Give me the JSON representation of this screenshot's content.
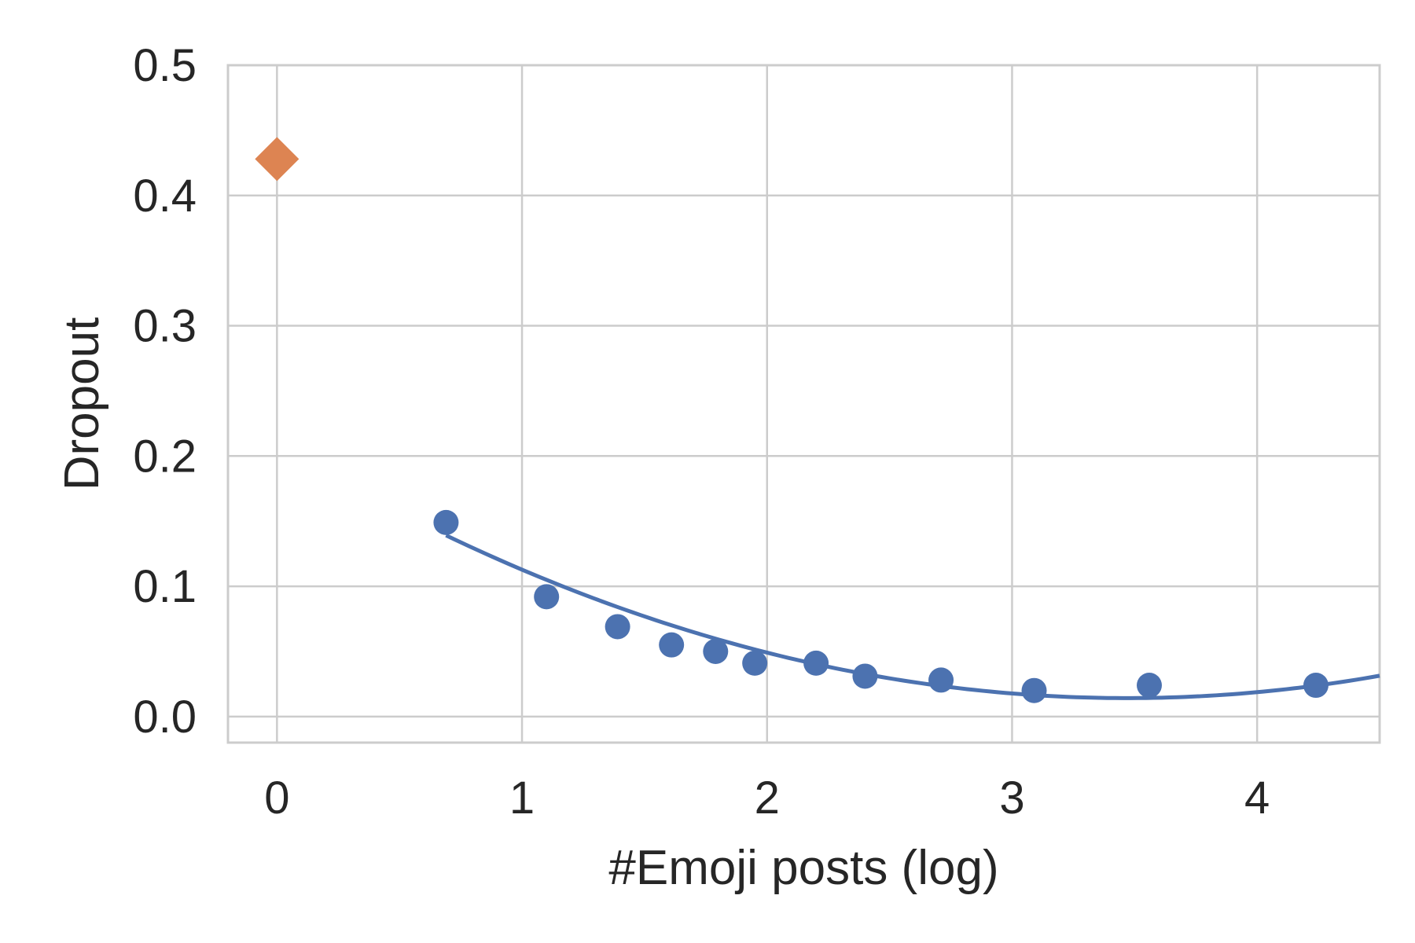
{
  "chart_data": {
    "type": "scatter",
    "xlabel": "#Emoji posts (log)",
    "ylabel": "Dropout",
    "xlim": [
      -0.2,
      4.5
    ],
    "ylim": [
      -0.02,
      0.5
    ],
    "x_ticks": [
      "0",
      "1",
      "2",
      "3",
      "4"
    ],
    "y_ticks": [
      "0.0",
      "0.1",
      "0.2",
      "0.3",
      "0.4",
      "0.5"
    ],
    "grid": true,
    "series": [
      {
        "marker": "diamond",
        "color": "#dd8452",
        "points": [
          [
            0.0,
            0.428
          ]
        ]
      },
      {
        "marker": "circle",
        "color": "#4c72b0",
        "points": [
          [
            0.69,
            0.149
          ],
          [
            1.1,
            0.092
          ],
          [
            1.39,
            0.069
          ],
          [
            1.61,
            0.055
          ],
          [
            1.79,
            0.05
          ],
          [
            1.95,
            0.041
          ],
          [
            2.2,
            0.041
          ],
          [
            2.4,
            0.031
          ],
          [
            2.71,
            0.028
          ],
          [
            3.09,
            0.02
          ],
          [
            3.56,
            0.024
          ],
          [
            4.24,
            0.024
          ]
        ]
      }
    ],
    "fit_curve": {
      "color": "#4c72b0",
      "x_range": [
        0.69,
        4.5
      ],
      "coefficients_quadratic": [
        0.2088,
        -0.1122,
        0.01617
      ]
    }
  }
}
